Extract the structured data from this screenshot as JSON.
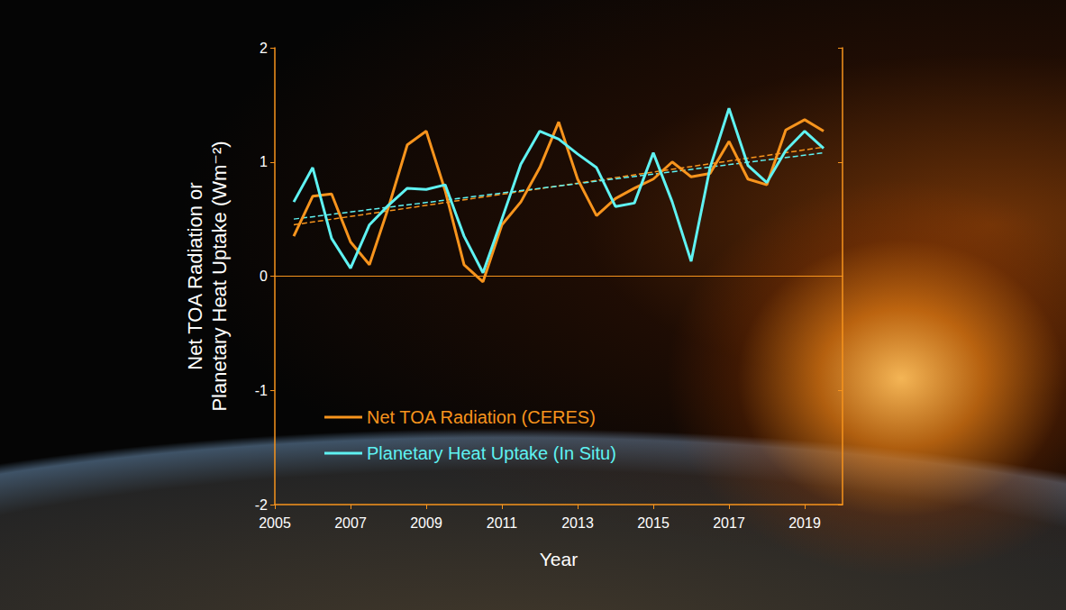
{
  "chart_data": {
    "type": "line",
    "x_label": "Year",
    "y_label": "Net TOA Radiation or\nPlanetary Heat Uptake (Wm⁻²)",
    "x": [
      2005.5,
      2006,
      2006.5,
      2007,
      2007.5,
      2008,
      2008.5,
      2009,
      2009.5,
      2010,
      2010.5,
      2011,
      2011.5,
      2012,
      2012.5,
      2013,
      2013.5,
      2014,
      2014.5,
      2015,
      2015.5,
      2016,
      2016.5,
      2017,
      2017.5,
      2018,
      2018.5,
      2019,
      2019.5
    ],
    "series": [
      {
        "name": "Net TOA Radiation (CERES)",
        "color": "#f7941d",
        "values": [
          0.35,
          0.7,
          0.72,
          0.3,
          0.1,
          0.6,
          1.15,
          1.27,
          0.75,
          0.1,
          -0.05,
          0.45,
          0.65,
          0.95,
          1.35,
          0.85,
          0.53,
          0.68,
          0.77,
          0.85,
          1.0,
          0.87,
          0.9,
          1.18,
          0.85,
          0.8,
          1.28,
          1.37,
          1.27
        ],
        "trend": {
          "x": [
            2005.5,
            2019.5
          ],
          "values": [
            0.45,
            1.13
          ]
        }
      },
      {
        "name": "Planetary Heat Uptake (In Situ)",
        "color": "#5ff2f2",
        "values": [
          0.65,
          0.95,
          0.33,
          0.07,
          0.45,
          0.62,
          0.77,
          0.76,
          0.8,
          0.35,
          0.03,
          0.5,
          0.98,
          1.27,
          1.2,
          1.07,
          0.95,
          0.61,
          0.64,
          1.08,
          0.65,
          0.13,
          0.95,
          1.47,
          0.97,
          0.82,
          1.1,
          1.27,
          1.12
        ],
        "trend": {
          "x": [
            2005.5,
            2019.5
          ],
          "values": [
            0.5,
            1.08
          ]
        }
      }
    ],
    "xlim": [
      2005,
      2020
    ],
    "xticks": [
      2005,
      2007,
      2009,
      2011,
      2013,
      2015,
      2017,
      2019
    ],
    "ylim": [
      -2,
      2
    ],
    "yticks": [
      -2,
      -1,
      0,
      1,
      2
    ],
    "grid": false,
    "legend": "lower left"
  }
}
